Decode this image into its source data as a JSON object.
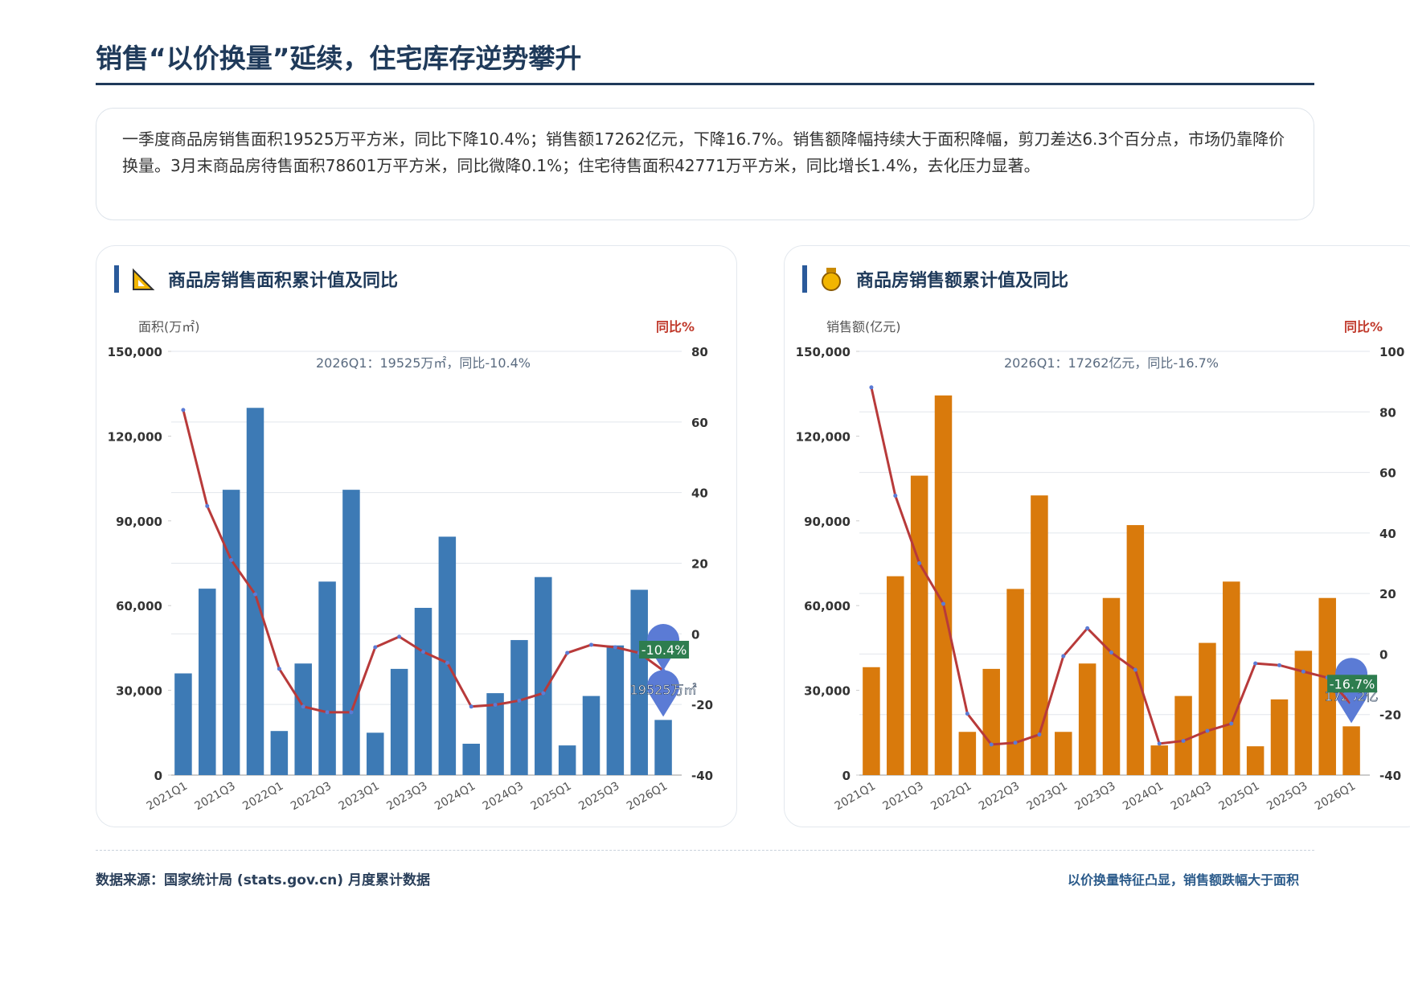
{
  "title": "销售“以价换量”延续，住宅库存逆势攀升",
  "summary": "一季度商品房销售面积19525万平方米，同比下降10.4%；销售额17262亿元，下降16.7%。销售额降幅持续大于面积降幅，剪刀差达6.3个百分点，市场仍靠降价换量。3月末商品房待售面积78601万平方米，同比微降0.1%；住宅待售面积42771万平方米，同比增长1.4%，去化压力显著。",
  "chart_data": [
    {
      "type": "bar",
      "title": "商品房销售面积累计值及同比",
      "y_label": "面积(万㎡)",
      "y2_label": "同比%",
      "annotation": "2026Q1：19525万㎡，同比-10.4%",
      "categories": [
        "2021Q1",
        null,
        "2021Q3",
        null,
        "2022Q1",
        null,
        "2022Q3",
        null,
        "2023Q1",
        null,
        "2023Q3",
        null,
        "2024Q1",
        null,
        "2024Q3",
        null,
        "2025Q1",
        null,
        "2025Q3",
        null,
        "2026Q1"
      ],
      "ylim": [
        0,
        150000
      ],
      "yticks": [
        0,
        {
          "value": 30000,
          "label": "30,000"
        },
        {
          "value": 60000,
          "label": "60,000"
        },
        {
          "value": 90000,
          "label": "90,000"
        },
        {
          "value": 120000,
          "label": "120,000"
        },
        {
          "value": 150000,
          "label": "150,000"
        }
      ],
      "y2lim": [
        -40,
        80
      ],
      "y2ticks": [
        -40,
        -20,
        0,
        20,
        40,
        60,
        80
      ],
      "grid": true,
      "series": [
        {
          "type": "bar",
          "color": "#3d7ab5",
          "values": [
            36000,
            66000,
            101000,
            130000,
            15600,
            39500,
            68500,
            101000,
            15000,
            37600,
            59200,
            84400,
            11100,
            29000,
            47800,
            70100,
            10500,
            28000,
            45900,
            65600,
            19525
          ],
          "value_labels": [
            null,
            null,
            null,
            null,
            null,
            null,
            null,
            null,
            null,
            null,
            null,
            null,
            null,
            null,
            null,
            null,
            null,
            null,
            null,
            null,
            "19525万㎡"
          ]
        },
        {
          "type": "line",
          "axis": "y2",
          "color": "#b83a3a",
          "values": [
            63.4,
            36.2,
            20.9,
            11.2,
            -9.9,
            -20.6,
            -22.2,
            -22.2,
            -3.8,
            -0.8,
            -5.1,
            -8.2,
            -20.6,
            -20.1,
            -18.9,
            -16.8,
            -5.4,
            -3.1,
            -3.8,
            -5.4,
            -10.4
          ],
          "value_labels": [
            null,
            null,
            null,
            null,
            null,
            null,
            null,
            null,
            null,
            null,
            null,
            null,
            null,
            null,
            null,
            null,
            null,
            null,
            null,
            null,
            "-10.4%"
          ]
        }
      ]
    },
    {
      "type": "bar",
      "title": "商品房销售额累计值及同比",
      "y_label": "销售额(亿元)",
      "y2_label": "同比%",
      "annotation": "2026Q1：17262亿元，同比-16.7%",
      "categories": [
        "2021Q1",
        null,
        "2021Q3",
        null,
        "2022Q1",
        null,
        "2022Q3",
        null,
        "2023Q1",
        null,
        "2023Q3",
        null,
        "2024Q1",
        null,
        "2024Q3",
        null,
        "2025Q1",
        null,
        "2025Q3",
        null,
        "2026Q1"
      ],
      "ylim": [
        0,
        150000
      ],
      "yticks": [
        0,
        {
          "value": 30000,
          "label": "30,000"
        },
        {
          "value": 60000,
          "label": "60,000"
        },
        {
          "value": 90000,
          "label": "90,000"
        },
        {
          "value": 120000,
          "label": "120,000"
        },
        {
          "value": 150000,
          "label": "150,000"
        }
      ],
      "y2lim": [
        -40,
        100
      ],
      "y2ticks": [
        -40,
        -20,
        0,
        20,
        40,
        60,
        80,
        100
      ],
      "grid": true,
      "series": [
        {
          "type": "bar",
          "color": "#d97a0c",
          "values": [
            38200,
            70400,
            106000,
            134400,
            15300,
            37600,
            65900,
            99000,
            15300,
            39500,
            62700,
            88500,
            10500,
            28000,
            46800,
            68500,
            10200,
            26800,
            44000,
            62700,
            17262
          ],
          "value_labels": [
            null,
            null,
            null,
            null,
            null,
            null,
            null,
            null,
            null,
            null,
            null,
            null,
            null,
            null,
            null,
            null,
            null,
            null,
            null,
            null,
            "17262亿"
          ]
        },
        {
          "type": "line",
          "axis": "y2",
          "color": "#b83a3a",
          "values": [
            88.1,
            52.3,
            30,
            16.6,
            -19.7,
            -29.9,
            -29.3,
            -26.6,
            -0.7,
            8.5,
            0.5,
            -5.2,
            -29.6,
            -28.7,
            -25.4,
            -23,
            -3.1,
            -3.7,
            -5.8,
            -7.8,
            -16.7
          ],
          "value_labels": [
            null,
            null,
            null,
            null,
            null,
            null,
            null,
            null,
            null,
            null,
            null,
            null,
            null,
            null,
            null,
            null,
            null,
            null,
            null,
            null,
            "-16.7%"
          ]
        }
      ]
    }
  ],
  "footer": {
    "source": "数据来源：国家统计局 (stats.gov.cn) 月度累计数据",
    "note": "以价换量特征凸显，销售额跌幅大于面积"
  }
}
